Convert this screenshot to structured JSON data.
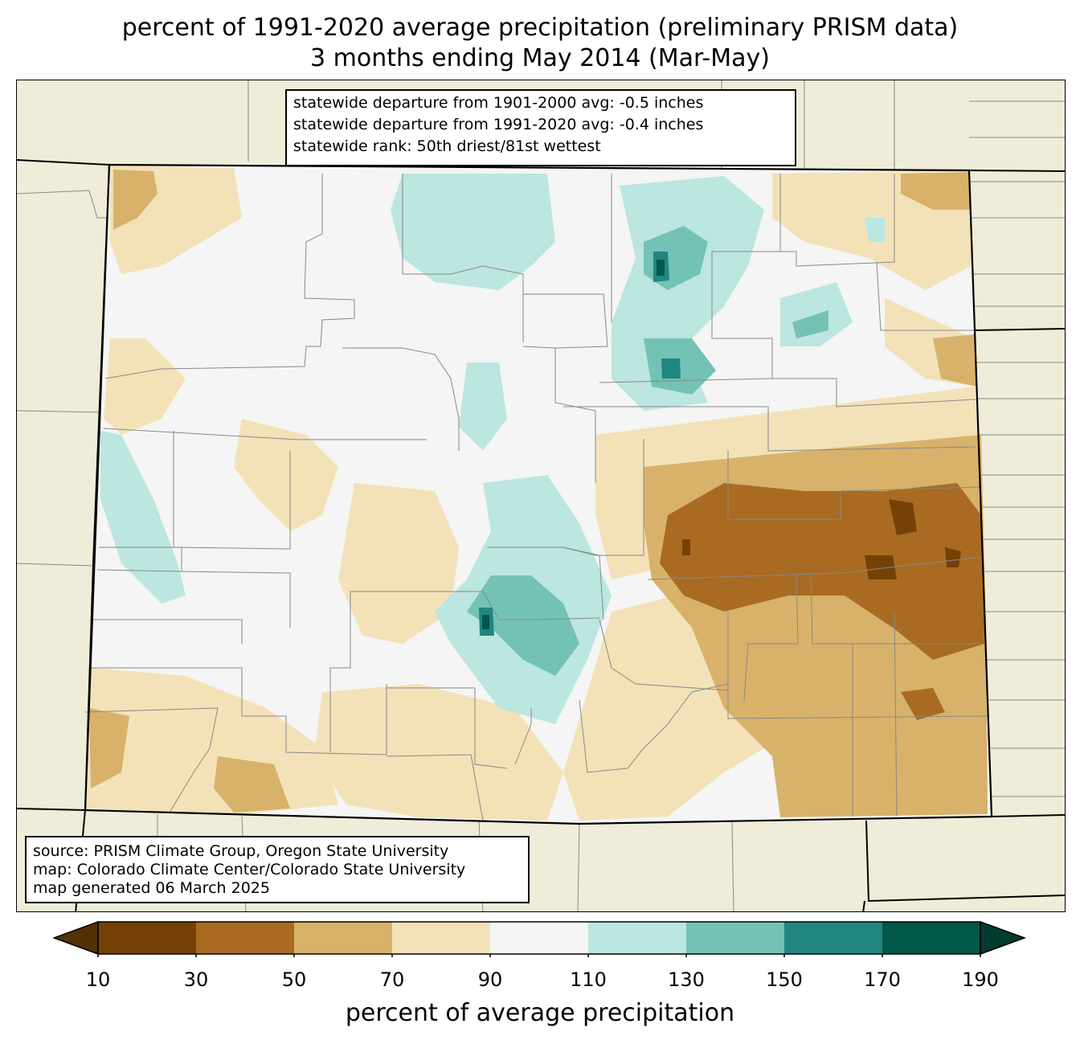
{
  "title": {
    "line1": "percent of 1991-2020 average precipitation (preliminary PRISM data)",
    "line2": "3 months ending May 2014 (Mar-May)"
  },
  "stats_box": {
    "line1": "statewide departure from 1901-2000 avg: -0.5 inches",
    "line2": "statewide departure from 1991-2020 avg: -0.4 inches",
    "line3": "statewide rank: 50th driest/81st wettest"
  },
  "source_box": {
    "line1": "source: PRISM Climate Group, Oregon State University",
    "line2": "map: Colorado Climate Center/Colorado State University",
    "line3": "map generated 06 March 2025"
  },
  "colorbar": {
    "label": "percent of average precipitation",
    "ticks": [
      "10",
      "30",
      "50",
      "70",
      "90",
      "110",
      "130",
      "150",
      "170",
      "190"
    ],
    "under_color": "#543005",
    "over_color": "#003c30",
    "bins": [
      {
        "range": "10-30",
        "color": "#744107"
      },
      {
        "range": "30-50",
        "color": "#a96b22"
      },
      {
        "range": "50-70",
        "color": "#d8b26a"
      },
      {
        "range": "70-90",
        "color": "#f3e2b8"
      },
      {
        "range": "90-110",
        "color": "#f4f5f4"
      },
      {
        "range": "110-130",
        "color": "#bce6e0"
      },
      {
        "range": "130-150",
        "color": "#73c2b5"
      },
      {
        "range": "150-170",
        "color": "#218680"
      },
      {
        "range": "170-190",
        "color": "#00574a"
      }
    ]
  },
  "map": {
    "background_color": "#efecd9",
    "state_border_color": "#000000",
    "county_border_color": "#888888"
  }
}
